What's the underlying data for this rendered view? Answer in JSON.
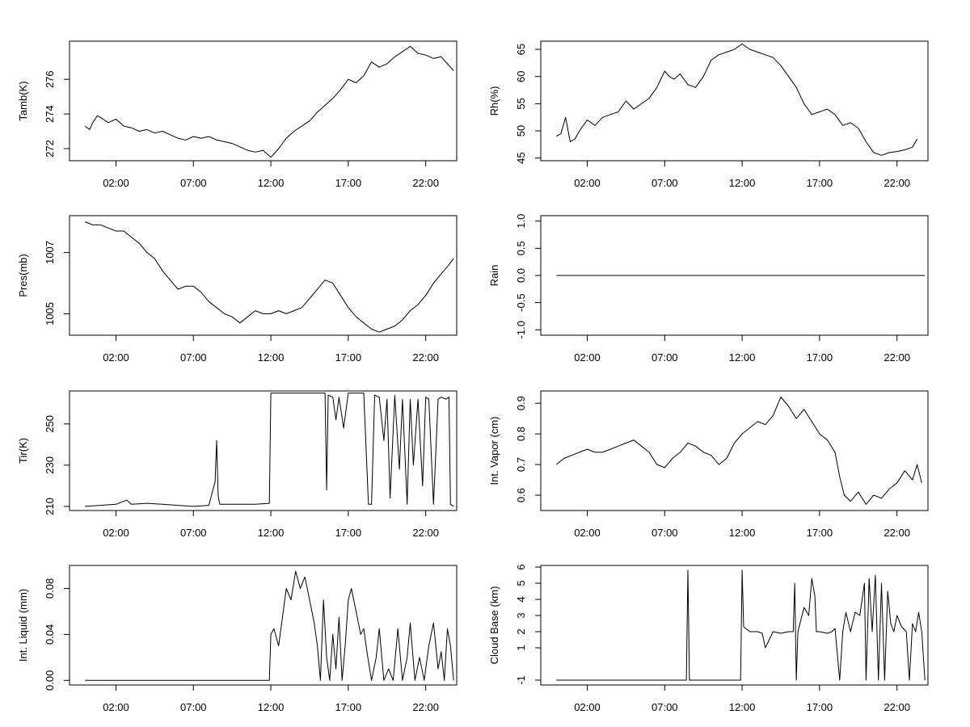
{
  "chart_data": [
    {
      "type": "line",
      "ylabel": "Tamb(K)",
      "xlim": [
        -1,
        24
      ],
      "ylim": [
        271.3,
        278.2
      ],
      "x_ticks": [
        {
          "value": 2,
          "label": "02:00"
        },
        {
          "value": 7,
          "label": "07:00"
        },
        {
          "value": 12,
          "label": "12:00"
        },
        {
          "value": 17,
          "label": "17:00"
        },
        {
          "value": 22,
          "label": "22:00"
        }
      ],
      "y_ticks": [
        {
          "value": 272,
          "label": "272"
        },
        {
          "value": 274,
          "label": "274"
        },
        {
          "value": 276,
          "label": "276"
        }
      ],
      "grid": false,
      "x": [
        0.0,
        0.3,
        0.5,
        0.8,
        1.0,
        1.5,
        2.0,
        2.5,
        3.0,
        3.5,
        4.0,
        4.5,
        5.0,
        5.5,
        6.0,
        6.5,
        7.0,
        7.5,
        8.0,
        8.5,
        9.0,
        9.5,
        10.0,
        10.5,
        11.0,
        11.5,
        12.0,
        12.5,
        13.0,
        13.5,
        14.0,
        14.5,
        15.0,
        15.5,
        16.0,
        16.5,
        17.0,
        17.5,
        18.0,
        18.5,
        19.0,
        19.5,
        20.0,
        20.5,
        21.0,
        21.5,
        22.0,
        22.5,
        23.0,
        23.5,
        23.8
      ],
      "y": [
        273.3,
        273.1,
        273.5,
        273.9,
        273.8,
        273.5,
        273.7,
        273.3,
        273.2,
        273.0,
        273.1,
        272.9,
        273.0,
        272.8,
        272.6,
        272.5,
        272.7,
        272.6,
        272.7,
        272.5,
        272.4,
        272.3,
        272.1,
        271.9,
        271.8,
        271.9,
        271.5,
        272.0,
        272.6,
        273.0,
        273.3,
        273.6,
        274.1,
        274.5,
        274.9,
        275.4,
        276.0,
        275.8,
        276.2,
        277.0,
        276.7,
        276.9,
        277.3,
        277.6,
        277.9,
        277.5,
        277.4,
        277.2,
        277.3,
        276.8,
        276.5
      ]
    },
    {
      "type": "line",
      "ylabel": "Rh(%)",
      "xlim": [
        -1,
        24
      ],
      "ylim": [
        44.5,
        66.5
      ],
      "x_ticks": [
        {
          "value": 2,
          "label": "02:00"
        },
        {
          "value": 7,
          "label": "07:00"
        },
        {
          "value": 12,
          "label": "12:00"
        },
        {
          "value": 17,
          "label": "17:00"
        },
        {
          "value": 22,
          "label": "22:00"
        }
      ],
      "y_ticks": [
        {
          "value": 45,
          "label": "45"
        },
        {
          "value": 50,
          "label": "50"
        },
        {
          "value": 55,
          "label": "55"
        },
        {
          "value": 60,
          "label": "60"
        },
        {
          "value": 65,
          "label": "65"
        }
      ],
      "grid": false,
      "x": [
        0.0,
        0.3,
        0.6,
        0.9,
        1.2,
        1.5,
        2.0,
        2.5,
        3.0,
        3.5,
        4.0,
        4.5,
        5.0,
        5.5,
        6.0,
        6.5,
        7.0,
        7.3,
        7.6,
        8.0,
        8.5,
        9.0,
        9.5,
        10.0,
        10.5,
        11.0,
        11.5,
        12.0,
        12.5,
        13.0,
        13.5,
        14.0,
        14.5,
        15.0,
        15.5,
        16.0,
        16.5,
        17.0,
        17.5,
        18.0,
        18.5,
        19.0,
        19.5,
        20.0,
        20.5,
        21.0,
        21.5,
        22.0,
        22.5,
        23.0,
        23.3
      ],
      "y": [
        49.0,
        49.5,
        52.5,
        48.0,
        48.5,
        50.0,
        52.0,
        51.0,
        52.5,
        53.0,
        53.5,
        55.5,
        54.0,
        55.0,
        56.0,
        58.0,
        61.0,
        60.0,
        59.5,
        60.5,
        58.5,
        58.0,
        60.0,
        63.0,
        64.0,
        64.5,
        65.0,
        66.0,
        65.0,
        64.5,
        64.0,
        63.5,
        62.0,
        60.0,
        58.0,
        55.0,
        53.0,
        53.5,
        54.0,
        53.0,
        51.0,
        51.5,
        50.5,
        48.0,
        46.0,
        45.5,
        46.0,
        46.2,
        46.5,
        47.0,
        48.5
      ]
    },
    {
      "type": "line",
      "ylabel": "Pres(mb)",
      "xlim": [
        -1,
        24
      ],
      "ylim": [
        1004.3,
        1008.2
      ],
      "x_ticks": [
        {
          "value": 2,
          "label": "02:00"
        },
        {
          "value": 7,
          "label": "07:00"
        },
        {
          "value": 12,
          "label": "12:00"
        },
        {
          "value": 17,
          "label": "17:00"
        },
        {
          "value": 22,
          "label": "22:00"
        }
      ],
      "y_ticks": [
        {
          "value": 1005,
          "label": "1005"
        },
        {
          "value": 1007,
          "label": "1007"
        }
      ],
      "grid": false,
      "x": [
        0.0,
        0.5,
        1.0,
        1.5,
        2.0,
        2.5,
        3.0,
        3.5,
        4.0,
        4.5,
        5.0,
        5.5,
        6.0,
        6.5,
        7.0,
        7.5,
        8.0,
        8.5,
        9.0,
        9.5,
        10.0,
        10.5,
        11.0,
        11.5,
        12.0,
        12.5,
        13.0,
        13.5,
        14.0,
        14.5,
        15.0,
        15.5,
        16.0,
        16.5,
        17.0,
        17.5,
        18.0,
        18.5,
        19.0,
        19.5,
        20.0,
        20.5,
        21.0,
        21.5,
        22.0,
        22.5,
        23.0,
        23.5,
        23.8
      ],
      "y": [
        1008.0,
        1007.9,
        1007.9,
        1007.8,
        1007.7,
        1007.7,
        1007.5,
        1007.3,
        1007.0,
        1006.8,
        1006.4,
        1006.1,
        1005.8,
        1005.9,
        1005.9,
        1005.7,
        1005.4,
        1005.2,
        1005.0,
        1004.9,
        1004.7,
        1004.9,
        1005.1,
        1005.0,
        1005.0,
        1005.1,
        1005.0,
        1005.1,
        1005.2,
        1005.5,
        1005.8,
        1006.1,
        1006.0,
        1005.6,
        1005.2,
        1004.9,
        1004.7,
        1004.5,
        1004.4,
        1004.5,
        1004.6,
        1004.8,
        1005.1,
        1005.3,
        1005.6,
        1006.0,
        1006.3,
        1006.6,
        1006.8
      ]
    },
    {
      "type": "line",
      "ylabel": "Rain",
      "xlim": [
        -1,
        24
      ],
      "ylim": [
        -1.1,
        1.1
      ],
      "x_ticks": [
        {
          "value": 2,
          "label": "02:00"
        },
        {
          "value": 7,
          "label": "07:00"
        },
        {
          "value": 12,
          "label": "12:00"
        },
        {
          "value": 17,
          "label": "17:00"
        },
        {
          "value": 22,
          "label": "22:00"
        }
      ],
      "y_ticks": [
        {
          "value": -1.0,
          "label": "-1.0"
        },
        {
          "value": -0.5,
          "label": "-0.5"
        },
        {
          "value": 0.0,
          "label": "0.0"
        },
        {
          "value": 0.5,
          "label": "0.5"
        },
        {
          "value": 1.0,
          "label": "1.0"
        }
      ],
      "grid": false,
      "x": [
        0.0,
        23.8
      ],
      "y": [
        0.0,
        0.0
      ]
    },
    {
      "type": "line",
      "ylabel": "Tir(K)",
      "xlim": [
        -1,
        24
      ],
      "ylim": [
        208,
        266
      ],
      "x_ticks": [
        {
          "value": 2,
          "label": "02:00"
        },
        {
          "value": 7,
          "label": "07:00"
        },
        {
          "value": 12,
          "label": "12:00"
        },
        {
          "value": 17,
          "label": "17:00"
        },
        {
          "value": 22,
          "label": "22:00"
        }
      ],
      "y_ticks": [
        {
          "value": 210,
          "label": "210"
        },
        {
          "value": 230,
          "label": "230"
        },
        {
          "value": 250,
          "label": "250"
        }
      ],
      "grid": false,
      "x": [
        0.0,
        1.0,
        2.0,
        2.7,
        3.0,
        4.0,
        5.0,
        6.0,
        7.0,
        8.0,
        8.4,
        8.5,
        8.6,
        8.7,
        9.0,
        10.0,
        11.0,
        11.9,
        12.0,
        12.1,
        13.0,
        14.0,
        15.0,
        15.5,
        15.6,
        15.7,
        16.0,
        16.2,
        16.4,
        16.7,
        17.0,
        17.5,
        18.0,
        18.3,
        18.5,
        18.7,
        19.0,
        19.3,
        19.5,
        19.7,
        20.0,
        20.3,
        20.5,
        20.8,
        21.0,
        21.2,
        21.5,
        21.8,
        22.0,
        22.2,
        22.5,
        22.8,
        23.0,
        23.3,
        23.5,
        23.6,
        23.8
      ],
      "y": [
        210.0,
        210.5,
        211.0,
        213.0,
        211.0,
        211.5,
        211.0,
        210.5,
        210.0,
        210.5,
        222.0,
        242.0,
        215.0,
        211.0,
        211.0,
        211.0,
        211.0,
        211.5,
        265.0,
        265.0,
        265.0,
        265.0,
        265.0,
        265.0,
        218.0,
        264.0,
        263.0,
        252.0,
        263.0,
        248.0,
        265.0,
        265.0,
        265.0,
        211.0,
        211.0,
        264.0,
        263.0,
        242.0,
        262.0,
        214.0,
        264.0,
        228.0,
        262.0,
        211.0,
        262.0,
        230.0,
        262.0,
        220.0,
        263.0,
        262.0,
        211.0,
        262.0,
        263.0,
        262.0,
        263.0,
        211.0,
        210.0
      ]
    },
    {
      "type": "line",
      "ylabel": "Int. Vapor (cm)",
      "xlim": [
        -1,
        24
      ],
      "ylim": [
        0.55,
        0.94
      ],
      "x_ticks": [
        {
          "value": 2,
          "label": "02:00"
        },
        {
          "value": 7,
          "label": "07:00"
        },
        {
          "value": 12,
          "label": "12:00"
        },
        {
          "value": 17,
          "label": "17:00"
        },
        {
          "value": 22,
          "label": "22:00"
        }
      ],
      "y_ticks": [
        {
          "value": 0.6,
          "label": "0.6"
        },
        {
          "value": 0.7,
          "label": "0.7"
        },
        {
          "value": 0.8,
          "label": "0.8"
        },
        {
          "value": 0.9,
          "label": "0.9"
        }
      ],
      "grid": false,
      "x": [
        0.0,
        0.5,
        1.0,
        1.5,
        2.0,
        2.5,
        3.0,
        3.5,
        4.0,
        4.5,
        5.0,
        5.5,
        6.0,
        6.5,
        7.0,
        7.5,
        8.0,
        8.5,
        9.0,
        9.5,
        10.0,
        10.5,
        11.0,
        11.5,
        12.0,
        12.5,
        13.0,
        13.5,
        14.0,
        14.5,
        15.0,
        15.5,
        16.0,
        16.5,
        17.0,
        17.5,
        18.0,
        18.3,
        18.6,
        19.0,
        19.5,
        20.0,
        20.5,
        21.0,
        21.5,
        22.0,
        22.5,
        23.0,
        23.3,
        23.6
      ],
      "y": [
        0.7,
        0.72,
        0.73,
        0.74,
        0.75,
        0.74,
        0.74,
        0.75,
        0.76,
        0.77,
        0.78,
        0.76,
        0.74,
        0.7,
        0.69,
        0.72,
        0.74,
        0.77,
        0.76,
        0.74,
        0.73,
        0.7,
        0.72,
        0.77,
        0.8,
        0.82,
        0.84,
        0.83,
        0.86,
        0.92,
        0.89,
        0.85,
        0.88,
        0.84,
        0.8,
        0.78,
        0.74,
        0.66,
        0.6,
        0.58,
        0.61,
        0.57,
        0.6,
        0.59,
        0.62,
        0.64,
        0.68,
        0.65,
        0.7,
        0.64
      ]
    },
    {
      "type": "line",
      "ylabel": "Int. Liquid (mm)",
      "xlim": [
        -1,
        24
      ],
      "ylim": [
        -0.004,
        0.1
      ],
      "x_ticks": [
        {
          "value": 2,
          "label": "02:00"
        },
        {
          "value": 7,
          "label": "07:00"
        },
        {
          "value": 12,
          "label": "12:00"
        },
        {
          "value": 17,
          "label": "17:00"
        },
        {
          "value": 22,
          "label": "22:00"
        }
      ],
      "y_ticks": [
        {
          "value": 0.0,
          "label": "0.00"
        },
        {
          "value": 0.04,
          "label": "0.04"
        },
        {
          "value": 0.08,
          "label": "0.08"
        }
      ],
      "grid": false,
      "x": [
        0.0,
        11.9,
        12.0,
        12.2,
        12.5,
        12.8,
        13.0,
        13.3,
        13.6,
        13.9,
        14.2,
        14.5,
        14.8,
        15.0,
        15.2,
        15.4,
        15.6,
        15.8,
        16.0,
        16.2,
        16.4,
        16.6,
        16.8,
        17.0,
        17.2,
        17.5,
        17.8,
        18.0,
        18.2,
        18.5,
        18.8,
        19.0,
        19.3,
        19.6,
        19.9,
        20.2,
        20.5,
        20.8,
        21.0,
        21.3,
        21.6,
        21.9,
        22.2,
        22.5,
        22.8,
        23.0,
        23.2,
        23.4,
        23.6,
        23.8
      ],
      "y": [
        0.0,
        0.0,
        0.04,
        0.045,
        0.03,
        0.06,
        0.08,
        0.07,
        0.095,
        0.08,
        0.09,
        0.07,
        0.05,
        0.03,
        0.0,
        0.07,
        0.02,
        0.0,
        0.04,
        0.01,
        0.055,
        0.0,
        0.03,
        0.07,
        0.08,
        0.06,
        0.04,
        0.045,
        0.025,
        0.0,
        0.02,
        0.045,
        0.0,
        0.01,
        0.0,
        0.045,
        0.0,
        0.02,
        0.05,
        0.0,
        0.02,
        0.0,
        0.03,
        0.05,
        0.01,
        0.025,
        0.0,
        0.045,
        0.03,
        0.0
      ]
    },
    {
      "type": "line",
      "ylabel": "Cloud Base (km)",
      "xlim": [
        -1,
        24
      ],
      "ylim": [
        -1.3,
        6.1
      ],
      "x_ticks": [
        {
          "value": 2,
          "label": "02:00"
        },
        {
          "value": 7,
          "label": "07:00"
        },
        {
          "value": 12,
          "label": "12:00"
        },
        {
          "value": 17,
          "label": "17:00"
        },
        {
          "value": 22,
          "label": "22:00"
        }
      ],
      "y_ticks": [
        {
          "value": -1,
          "label": "-1"
        },
        {
          "value": 1,
          "label": "1"
        },
        {
          "value": 2,
          "label": "2"
        },
        {
          "value": 3,
          "label": "3"
        },
        {
          "value": 4,
          "label": "4"
        },
        {
          "value": 5,
          "label": "5"
        },
        {
          "value": 6,
          "label": "6"
        }
      ],
      "grid": false,
      "x": [
        0.0,
        8.4,
        8.5,
        8.6,
        11.9,
        12.0,
        12.1,
        12.5,
        13.0,
        13.3,
        13.5,
        14.0,
        14.5,
        15.0,
        15.3,
        15.4,
        15.5,
        15.6,
        16.0,
        16.3,
        16.5,
        16.7,
        16.8,
        17.0,
        17.5,
        17.8,
        18.0,
        18.3,
        18.5,
        18.7,
        19.0,
        19.3,
        19.6,
        19.9,
        20.0,
        20.2,
        20.4,
        20.6,
        20.8,
        21.0,
        21.2,
        21.4,
        21.6,
        21.8,
        22.0,
        22.3,
        22.6,
        22.8,
        23.0,
        23.2,
        23.4,
        23.6,
        23.8
      ],
      "y": [
        -1.0,
        -1.0,
        5.8,
        -1.0,
        -1.0,
        5.8,
        2.3,
        2.0,
        2.0,
        1.9,
        1.0,
        2.0,
        1.9,
        2.0,
        2.0,
        5.0,
        -1.0,
        2.0,
        3.5,
        3.0,
        5.3,
        4.2,
        2.0,
        2.0,
        1.9,
        2.0,
        2.2,
        -1.0,
        2.0,
        3.2,
        2.0,
        3.2,
        3.0,
        5.0,
        -1.0,
        5.3,
        2.0,
        5.5,
        -1.0,
        5.0,
        -1.0,
        4.5,
        2.5,
        2.0,
        3.0,
        2.3,
        2.0,
        -1.0,
        2.5,
        2.0,
        3.2,
        2.0,
        -1.0
      ]
    }
  ]
}
